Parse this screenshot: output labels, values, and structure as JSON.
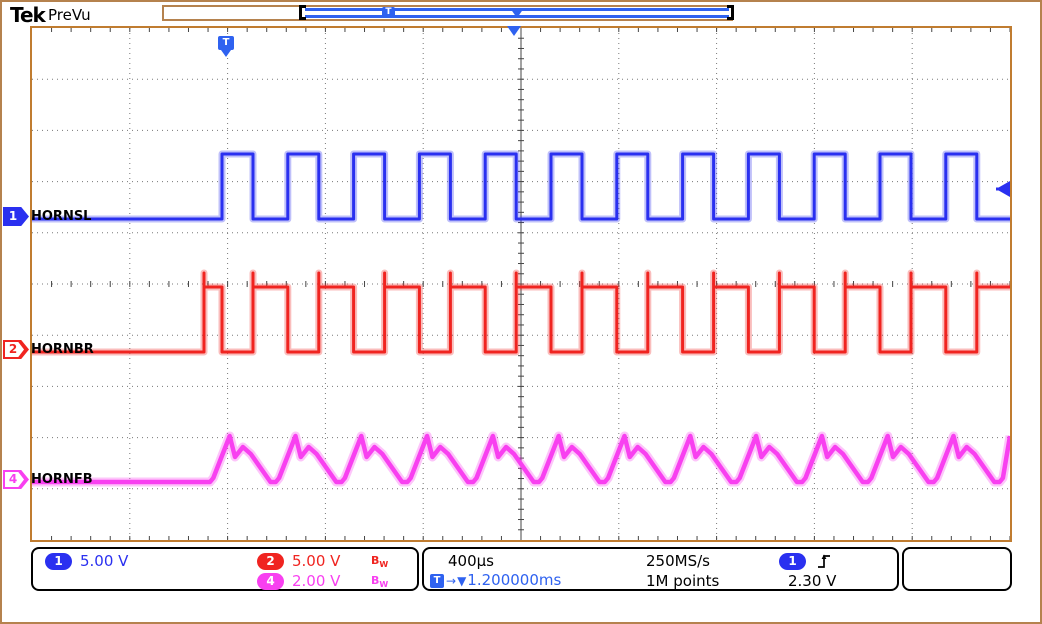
{
  "header": {
    "logo": "Tek",
    "mode": "PreVu"
  },
  "graticule": {
    "trigger_flag": "T"
  },
  "icons": {
    "arrow_right": "→",
    "triangle_down": "▼"
  },
  "channels": [
    {
      "badge": "1",
      "label": "HORNSL",
      "color": "#2a30f0"
    },
    {
      "badge": "2",
      "label": "HORNBR",
      "color": "#f02420"
    },
    {
      "badge": "4",
      "label": "HORNFB",
      "color": "#f840f0"
    }
  ],
  "status_bar": {
    "ch1": {
      "badge": "1",
      "scale": "5.00 V"
    },
    "ch2": {
      "badge": "2",
      "scale": "5.00 V",
      "bw": "B",
      "bw_sub": "W"
    },
    "ch4": {
      "badge": "4",
      "scale": "2.00 V",
      "bw": "B",
      "bw_sub": "W"
    },
    "timebase": "400µs",
    "sample_rate": "250MS/s",
    "record_length": "1M points",
    "trigger_delay_prefix": "T",
    "trigger_delay": "1.200000ms",
    "trigger_source_badge": "1",
    "trigger_level": "2.30 V"
  },
  "chart_data": {
    "type": "line",
    "title": "Oscilloscope capture: horn drive signals",
    "x_axis": {
      "time_per_div": "400µs",
      "divisions": 10,
      "sample_rate": "250MS/s",
      "record_length": "1M points",
      "trigger_delay": "1.200000ms"
    },
    "y_axis": {
      "divisions": 10,
      "trigger_level": "2.30 V",
      "trigger_source_channel": 1
    },
    "series": [
      {
        "name": "HORNSL",
        "channel": 1,
        "volts_per_div": "5.00 V",
        "color": "#2a30f0",
        "kind": "square",
        "base": 191,
        "high": 126,
        "start": 190,
        "first_w": 31,
        "high_w": 31,
        "low_w": 34.8,
        "end": 978,
        "spike": 0
      },
      {
        "name": "HORNBR",
        "channel": 2,
        "volts_per_div": "5.00 V",
        "color": "#f02420",
        "kind": "square",
        "base": 324,
        "high": 259,
        "start": 172,
        "first_w": 18,
        "high_w": 34.8,
        "low_w": 31,
        "end": 978,
        "spike": 14
      },
      {
        "name": "HORNFB",
        "channel": 4,
        "volts_per_div": "2.00 V",
        "color": "#f840f0",
        "kind": "saw",
        "base": 454,
        "start": 178,
        "period": 65.8,
        "end": 978,
        "shape": [
          [
            0.05,
            450
          ],
          [
            0.3,
            408
          ],
          [
            0.38,
            429
          ],
          [
            0.5,
            419
          ],
          [
            0.62,
            426
          ],
          [
            0.92,
            454
          ],
          [
            1.0,
            454
          ]
        ]
      }
    ]
  }
}
